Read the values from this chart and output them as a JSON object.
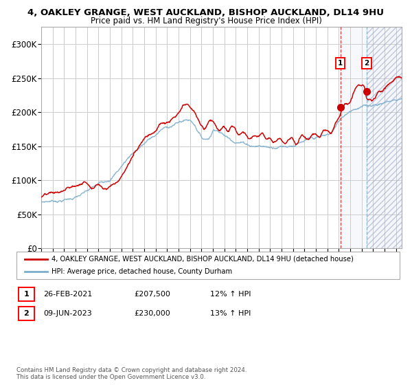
{
  "title1": "4, OAKLEY GRANGE, WEST AUCKLAND, BISHOP AUCKLAND, DL14 9HU",
  "title2": "Price paid vs. HM Land Registry's House Price Index (HPI)",
  "legend_line1": "4, OAKLEY GRANGE, WEST AUCKLAND, BISHOP AUCKLAND, DL14 9HU (detached house)",
  "legend_line2": "HPI: Average price, detached house, County Durham",
  "annotation1_date": "26-FEB-2021",
  "annotation1_price": "£207,500",
  "annotation1_hpi": "12% ↑ HPI",
  "annotation2_date": "09-JUN-2023",
  "annotation2_price": "£230,000",
  "annotation2_hpi": "13% ↑ HPI",
  "footer": "Contains HM Land Registry data © Crown copyright and database right 2024.\nThis data is licensed under the Open Government Licence v3.0.",
  "bg_color": "#ffffff",
  "grid_color": "#cccccc",
  "red_line_color": "#cc0000",
  "blue_line_color": "#7aadcc",
  "point1_x": 2021.15,
  "point1_y": 207500,
  "point2_x": 2023.44,
  "point2_y": 230000,
  "vline1_x": 2021.15,
  "vline2_x": 2023.44,
  "ylim": [
    0,
    325000
  ],
  "xlim_start": 1995.0,
  "xlim_end": 2026.5,
  "yticks": [
    0,
    50000,
    100000,
    150000,
    200000,
    250000,
    300000
  ],
  "ytick_labels": [
    "£0",
    "£50K",
    "£100K",
    "£150K",
    "£200K",
    "£250K",
    "£300K"
  ],
  "xticks": [
    1995,
    1996,
    1997,
    1998,
    1999,
    2000,
    2001,
    2002,
    2003,
    2004,
    2005,
    2006,
    2007,
    2008,
    2009,
    2010,
    2011,
    2012,
    2013,
    2014,
    2015,
    2016,
    2017,
    2018,
    2019,
    2020,
    2021,
    2022,
    2023,
    2024,
    2025,
    2026
  ],
  "hpi_keypoints": [
    [
      1995.0,
      68000
    ],
    [
      1996.0,
      70000
    ],
    [
      1997.0,
      72000
    ],
    [
      1998.0,
      76000
    ],
    [
      1999.0,
      82000
    ],
    [
      2000.0,
      90000
    ],
    [
      2001.0,
      100000
    ],
    [
      2002.0,
      118000
    ],
    [
      2003.0,
      138000
    ],
    [
      2004.0,
      152000
    ],
    [
      2004.5,
      158000
    ],
    [
      2005.0,
      163000
    ],
    [
      2005.5,
      170000
    ],
    [
      2006.0,
      173000
    ],
    [
      2006.5,
      177000
    ],
    [
      2007.0,
      180000
    ],
    [
      2007.5,
      183000
    ],
    [
      2008.0,
      183000
    ],
    [
      2008.5,
      175000
    ],
    [
      2009.0,
      160000
    ],
    [
      2009.5,
      158000
    ],
    [
      2009.8,
      163000
    ],
    [
      2010.0,
      170000
    ],
    [
      2010.5,
      172000
    ],
    [
      2011.0,
      165000
    ],
    [
      2011.5,
      160000
    ],
    [
      2012.0,
      158000
    ],
    [
      2012.5,
      157000
    ],
    [
      2013.0,
      155000
    ],
    [
      2013.5,
      153000
    ],
    [
      2014.0,
      153000
    ],
    [
      2014.5,
      152000
    ],
    [
      2015.0,
      151000
    ],
    [
      2015.5,
      153000
    ],
    [
      2016.0,
      155000
    ],
    [
      2016.5,
      156000
    ],
    [
      2017.0,
      158000
    ],
    [
      2017.5,
      160000
    ],
    [
      2018.0,
      161000
    ],
    [
      2018.5,
      162000
    ],
    [
      2019.0,
      162000
    ],
    [
      2019.5,
      163000
    ],
    [
      2020.0,
      164000
    ],
    [
      2020.5,
      170000
    ],
    [
      2021.0,
      182000
    ],
    [
      2021.5,
      192000
    ],
    [
      2022.0,
      200000
    ],
    [
      2022.5,
      205000
    ],
    [
      2023.0,
      207000
    ],
    [
      2023.5,
      208000
    ],
    [
      2024.0,
      210000
    ],
    [
      2024.5,
      212000
    ],
    [
      2025.0,
      214000
    ],
    [
      2025.5,
      216000
    ],
    [
      2026.0,
      218000
    ],
    [
      2026.5,
      220000
    ]
  ],
  "prop_keypoints": [
    [
      1995.0,
      75000
    ],
    [
      1996.0,
      77000
    ],
    [
      1997.0,
      80000
    ],
    [
      1997.5,
      84000
    ],
    [
      1998.0,
      86000
    ],
    [
      1998.5,
      90000
    ],
    [
      1999.0,
      92000
    ],
    [
      1999.5,
      88000
    ],
    [
      2000.0,
      94000
    ],
    [
      2000.5,
      90000
    ],
    [
      2001.0,
      95000
    ],
    [
      2001.5,
      100000
    ],
    [
      2002.0,
      110000
    ],
    [
      2002.5,
      125000
    ],
    [
      2003.0,
      140000
    ],
    [
      2003.5,
      155000
    ],
    [
      2004.0,
      170000
    ],
    [
      2004.5,
      178000
    ],
    [
      2005.0,
      185000
    ],
    [
      2005.5,
      195000
    ],
    [
      2006.0,
      195000
    ],
    [
      2006.5,
      200000
    ],
    [
      2007.0,
      205000
    ],
    [
      2007.5,
      215000
    ],
    [
      2008.0,
      210000
    ],
    [
      2008.3,
      205000
    ],
    [
      2008.6,
      195000
    ],
    [
      2009.0,
      183000
    ],
    [
      2009.3,
      178000
    ],
    [
      2009.6,
      188000
    ],
    [
      2010.0,
      192000
    ],
    [
      2010.3,
      185000
    ],
    [
      2010.6,
      178000
    ],
    [
      2011.0,
      182000
    ],
    [
      2011.3,
      175000
    ],
    [
      2011.6,
      180000
    ],
    [
      2012.0,
      175000
    ],
    [
      2012.3,
      170000
    ],
    [
      2012.6,
      175000
    ],
    [
      2013.0,
      172000
    ],
    [
      2013.3,
      168000
    ],
    [
      2013.6,
      172000
    ],
    [
      2014.0,
      170000
    ],
    [
      2014.3,
      175000
    ],
    [
      2014.6,
      170000
    ],
    [
      2015.0,
      172000
    ],
    [
      2015.3,
      168000
    ],
    [
      2015.6,
      173000
    ],
    [
      2016.0,
      175000
    ],
    [
      2016.3,
      170000
    ],
    [
      2016.6,
      175000
    ],
    [
      2017.0,
      178000
    ],
    [
      2017.3,
      172000
    ],
    [
      2017.6,
      178000
    ],
    [
      2018.0,
      180000
    ],
    [
      2018.3,
      175000
    ],
    [
      2018.6,
      180000
    ],
    [
      2019.0,
      182000
    ],
    [
      2019.3,
      178000
    ],
    [
      2019.6,
      183000
    ],
    [
      2020.0,
      185000
    ],
    [
      2020.3,
      182000
    ],
    [
      2020.6,
      190000
    ],
    [
      2021.0,
      200000
    ],
    [
      2021.15,
      207500
    ],
    [
      2021.3,
      215000
    ],
    [
      2021.6,
      220000
    ],
    [
      2022.0,
      225000
    ],
    [
      2022.3,
      235000
    ],
    [
      2022.6,
      245000
    ],
    [
      2023.0,
      248000
    ],
    [
      2023.3,
      242000
    ],
    [
      2023.44,
      230000
    ],
    [
      2023.6,
      228000
    ],
    [
      2024.0,
      225000
    ],
    [
      2024.3,
      230000
    ],
    [
      2024.6,
      235000
    ],
    [
      2025.0,
      238000
    ],
    [
      2025.3,
      242000
    ],
    [
      2025.6,
      245000
    ],
    [
      2026.0,
      248000
    ],
    [
      2026.5,
      250000
    ]
  ]
}
